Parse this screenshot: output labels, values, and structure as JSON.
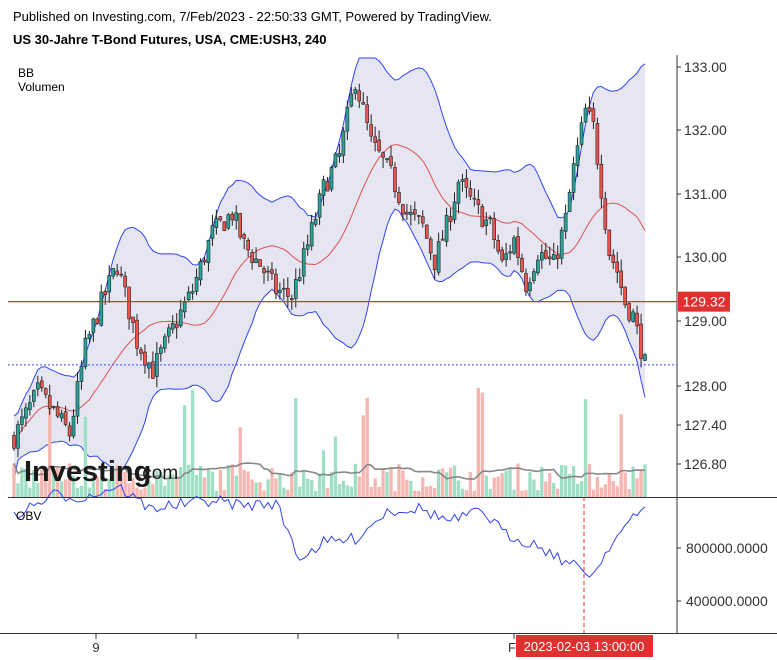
{
  "header": {
    "published": "Published on Investing.com, 7/Feb/2023 - 22:50:33 GMT, Powered by TradingView.",
    "title": "US 30-Jahre T-Bond Futures, USA, CME:USH3, 240"
  },
  "indicators": {
    "bb": "BB",
    "volume": "Volumen",
    "obv": "OBV"
  },
  "brand": {
    "logo_text": "Investing",
    "logo_suffix": ".com"
  },
  "colors": {
    "up": "#26a69a",
    "down": "#ef5350",
    "band_line": "#3344ee",
    "band_fill": "#e6e6f2",
    "basis": "#e05050",
    "price_line": "#e03030",
    "last_line": "#3355ee",
    "obv_line": "#3344ee",
    "vol_up": "#9fe0c4",
    "vol_down": "#f6b7b2",
    "cursor": "#e03030"
  },
  "chart_data": [
    {
      "type": "candlestick",
      "name": "price",
      "yticks": [
        "133.00",
        "132.00",
        "131.00",
        "130.00",
        "129.00",
        "128.00",
        "127.40",
        "126.80"
      ],
      "ylim": [
        126.6,
        133.1
      ],
      "price_label": "129.32",
      "price_level": 129.32,
      "last_price": 128.33,
      "x_labels": [
        "9",
        "F"
      ],
      "crosshair_label": "2023-02-03 13:00:00",
      "candles": [],
      "bollinger": {
        "upper": [],
        "basis": [],
        "lower": []
      },
      "volume_ma": []
    },
    {
      "type": "line",
      "name": "OBV",
      "yticks": [
        "800000.0000",
        "400000.0000"
      ],
      "ylim": [
        120000,
        1070000
      ],
      "values": []
    }
  ]
}
